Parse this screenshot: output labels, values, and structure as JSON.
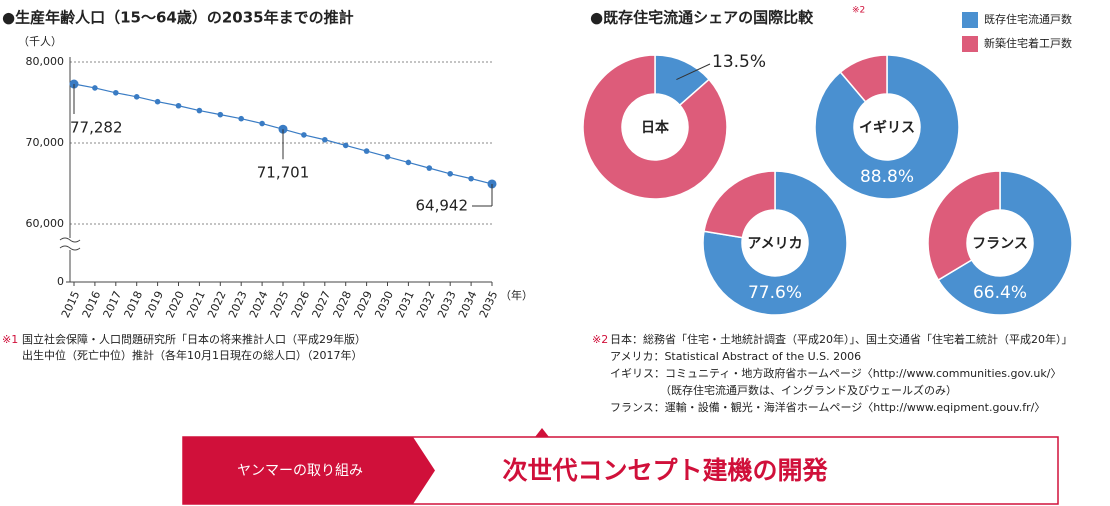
{
  "chart_data": [
    {
      "type": "line",
      "title": "●生産年齢人口（15〜64歳）の2035年までの推計",
      "y_label": "（千人）",
      "x_label": "（年）",
      "x": [
        2015,
        2016,
        2017,
        2018,
        2019,
        2020,
        2021,
        2022,
        2023,
        2024,
        2025,
        2026,
        2027,
        2028,
        2029,
        2030,
        2031,
        2032,
        2033,
        2034,
        2035
      ],
      "values": [
        77282,
        76800,
        76200,
        75700,
        75100,
        74600,
        74000,
        73500,
        73000,
        72400,
        71701,
        71000,
        70400,
        69700,
        69000,
        68300,
        67600,
        66900,
        66200,
        65600,
        64942
      ],
      "value_labels": [
        "77,282",
        null,
        null,
        null,
        null,
        null,
        null,
        null,
        null,
        null,
        "71,701",
        null,
        null,
        null,
        null,
        null,
        null,
        null,
        null,
        null,
        "64,942"
      ],
      "color": "#3a7cc4",
      "xlim": [
        2015,
        2035
      ],
      "ylim": [
        60000,
        80000
      ],
      "yticks": [
        {
          "value": 80000,
          "label": "80,000"
        },
        {
          "value": 70000,
          "label": "70,000"
        },
        {
          "value": 60000,
          "label": "60,000"
        },
        0
      ],
      "axis_break": true,
      "grid": true,
      "notes": [
        "※1",
        "国立社会保障・人口問題研究所「日本の将来推計人口（平成29年版）",
        "出生中位（死亡中位）推計（各年10月1日現在の総人口）（2017年）"
      ]
    },
    {
      "type": "donut",
      "title": "●既存住宅流通シェアの国際比較",
      "title_note": "※2",
      "legend": "top-right",
      "categories": [
        "既存住宅流通戸数",
        "新築住宅着工戸数"
      ],
      "colors": [
        "#4a90d0",
        "#dd5c7a"
      ],
      "pies": [
        {
          "name": "日本",
          "values": [
            13.5,
            86.5
          ],
          "value_labels": [
            "13.5%",
            null
          ]
        },
        {
          "name": "イギリス",
          "values": [
            88.8,
            11.2
          ],
          "value_labels": [
            "88.8%",
            null
          ]
        },
        {
          "name": "アメリカ",
          "values": [
            77.6,
            22.4
          ],
          "value_labels": [
            "77.6%",
            null
          ]
        },
        {
          "name": "フランス",
          "values": [
            66.4,
            33.6
          ],
          "value_labels": [
            "66.4%",
            null
          ]
        }
      ],
      "notes": [
        "※2",
        "日本：総務省「住宅・土地統計調査（平成20年）」、国土交通省「住宅着工統計（平成20年）」",
        "アメリカ：Statistical Abstract of the U.S. 2006",
        "イギリス：コミュニティ・地方政府省ホームページ〈http://www.communities.gov.uk/〉",
        "（既存住宅流通戸数は、イングランド及びウェールズのみ）",
        "フランス：運輸・設備・観光・海洋省ホームページ〈http://www.eqipment.gouv.fr/〉"
      ]
    }
  ],
  "banner": {
    "label": "ヤンマーの取り組み",
    "title": "次世代コンセプト建機の開発"
  }
}
